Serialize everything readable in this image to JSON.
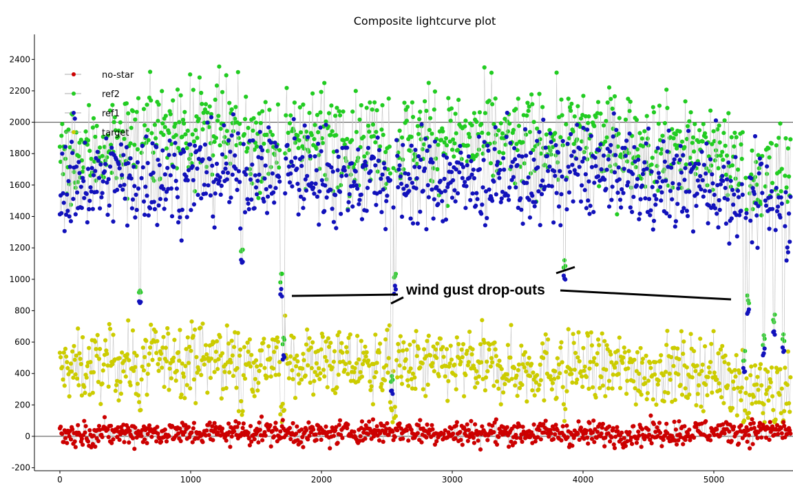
{
  "chart_data": {
    "type": "scatter",
    "title": "Composite lightcurve plot",
    "xlabel": "",
    "ylabel": "",
    "xlim": [
      -40,
      5600
    ],
    "ylim": [
      -210,
      2560
    ],
    "xticks": [
      0,
      1000,
      2000,
      3000,
      4000,
      5000
    ],
    "yticks": [
      -200,
      0,
      200,
      400,
      600,
      800,
      1000,
      1200,
      1400,
      1600,
      1800,
      2000,
      2200,
      2400
    ],
    "grid": "horizontal lines at 0 and 2000",
    "legend_position": "top-left",
    "legend": [
      "no-star",
      "ref2",
      "ref1",
      "target"
    ],
    "series": [
      {
        "name": "no-star",
        "color": "#cc0000",
        "summary": {
          "mean": 20,
          "spread_sd": 38,
          "typical_min": -90,
          "typical_max": 160
        },
        "x": [
          0,
          500,
          1000,
          1500,
          2000,
          2500,
          3000,
          3500,
          4000,
          4500,
          5000,
          5500
        ],
        "values": [
          10,
          25,
          20,
          30,
          15,
          40,
          20,
          25,
          15,
          20,
          30,
          35
        ]
      },
      {
        "name": "ref2",
        "color": "#22cc22",
        "summary": {
          "mean": 1860,
          "spread_sd": 150,
          "typical_min": 1300,
          "typical_max": 2440
        },
        "x": [
          0,
          500,
          1000,
          1500,
          2000,
          2500,
          3000,
          3500,
          4000,
          4500,
          5000,
          5500
        ],
        "values": [
          1750,
          1900,
          1980,
          1900,
          1920,
          1880,
          1900,
          1880,
          1900,
          1880,
          1820,
          1650
        ]
      },
      {
        "name": "ref1",
        "color": "#1111bb",
        "summary": {
          "mean": 1620,
          "spread_sd": 150,
          "typical_min": 1100,
          "typical_max": 2200
        },
        "x": [
          0,
          500,
          1000,
          1500,
          2000,
          2500,
          3000,
          3500,
          4000,
          4500,
          5000,
          5500
        ],
        "values": [
          1600,
          1650,
          1650,
          1700,
          1660,
          1640,
          1620,
          1650,
          1700,
          1620,
          1600,
          1450
        ]
      },
      {
        "name": "target",
        "color": "#cccc00",
        "summary": {
          "mean": 450,
          "spread_sd": 110,
          "typical_min": 80,
          "typical_max": 970
        },
        "x": [
          0,
          500,
          1000,
          1500,
          2000,
          2500,
          3000,
          3500,
          4000,
          4500,
          5000,
          5500
        ],
        "values": [
          420,
          470,
          500,
          480,
          470,
          440,
          450,
          430,
          440,
          420,
          420,
          300
        ]
      }
    ],
    "drops": [
      {
        "x": 614,
        "min": 830
      },
      {
        "x": 1390,
        "min": 1080
      },
      {
        "x": 1690,
        "min": 880
      },
      {
        "x": 1710,
        "min": 480
      },
      {
        "x": 2540,
        "min": 240
      },
      {
        "x": 2560,
        "min": 900
      },
      {
        "x": 3860,
        "min": 980
      },
      {
        "x": 5230,
        "min": 400
      },
      {
        "x": 5260,
        "min": 760
      },
      {
        "x": 5380,
        "min": 500
      },
      {
        "x": 5460,
        "min": 620
      },
      {
        "x": 5530,
        "min": 520
      }
    ],
    "annotations": [
      {
        "text": "wind gust drop-outs"
      }
    ]
  }
}
